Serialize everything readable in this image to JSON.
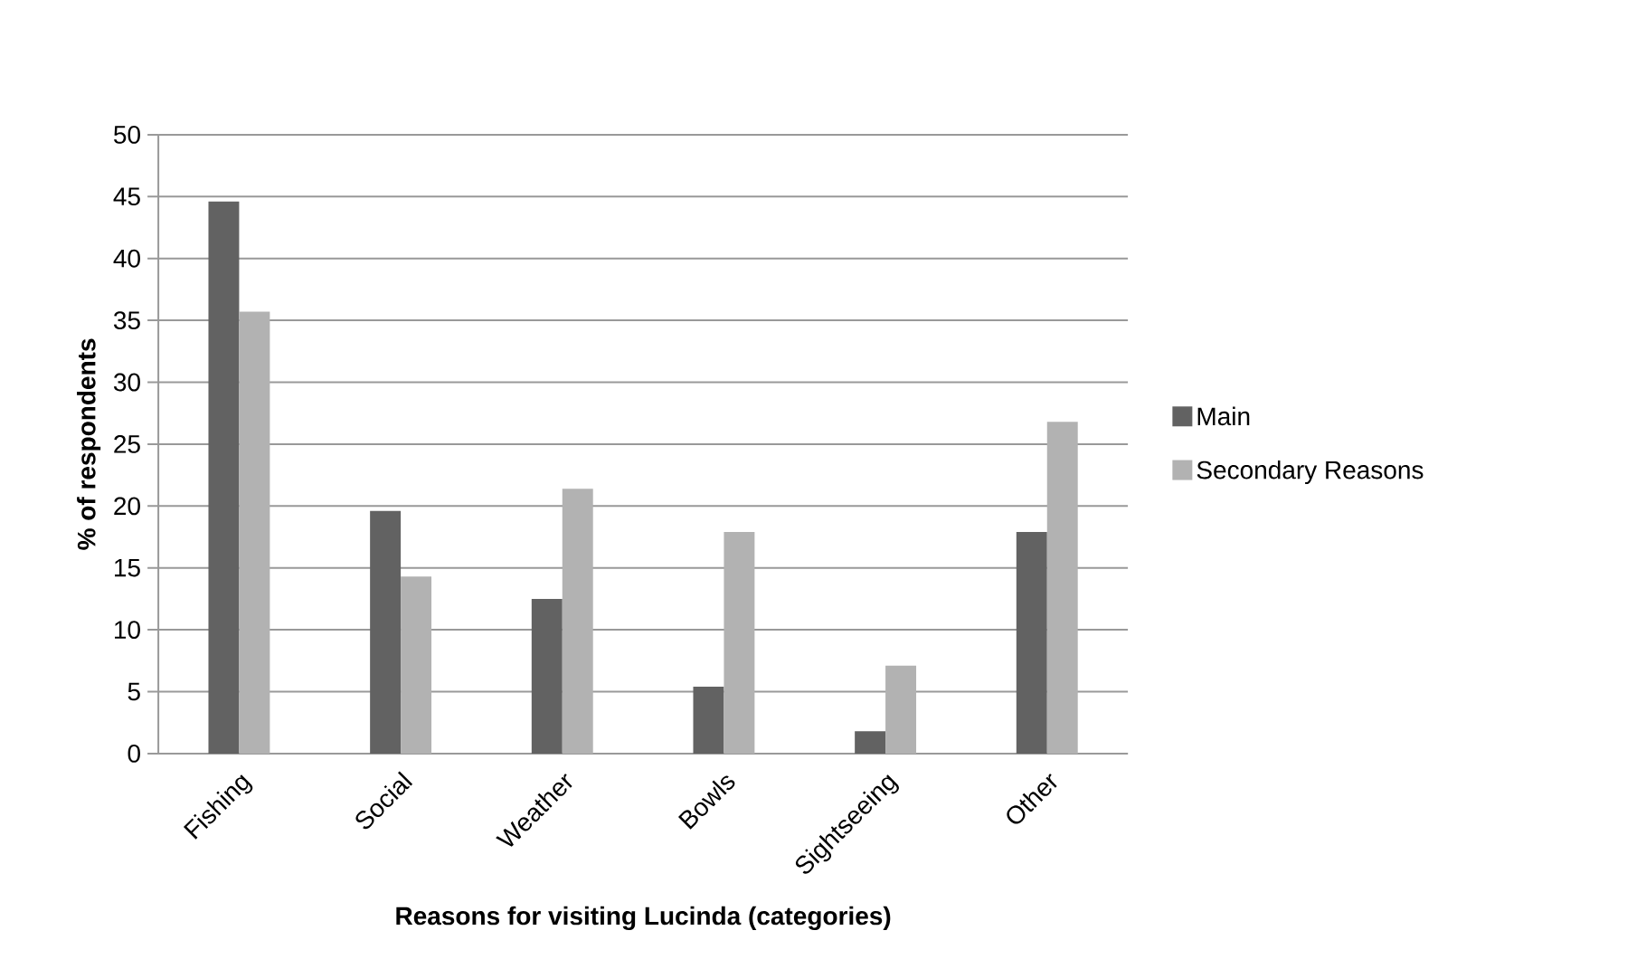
{
  "chart_data": {
    "type": "bar",
    "xlabel": "Reasons  for visiting Lucinda (categories)",
    "ylabel": "% of respondents",
    "categories": [
      "Fishing",
      "Social",
      "Weather",
      "Bowls",
      "Sightseeing",
      "Other"
    ],
    "series": [
      {
        "name": "Main",
        "color": "#626262",
        "values": [
          44.6,
          19.6,
          12.5,
          5.4,
          1.8,
          17.9
        ]
      },
      {
        "name": "Secondary Reasons",
        "color": "#b2b2b2",
        "values": [
          35.7,
          14.3,
          21.4,
          17.9,
          7.1,
          26.8
        ]
      }
    ],
    "ylim": [
      0,
      50
    ],
    "yticks": [
      0,
      5,
      10,
      15,
      20,
      25,
      30,
      35,
      40,
      45,
      50
    ],
    "grid": "y",
    "legend": "right"
  }
}
